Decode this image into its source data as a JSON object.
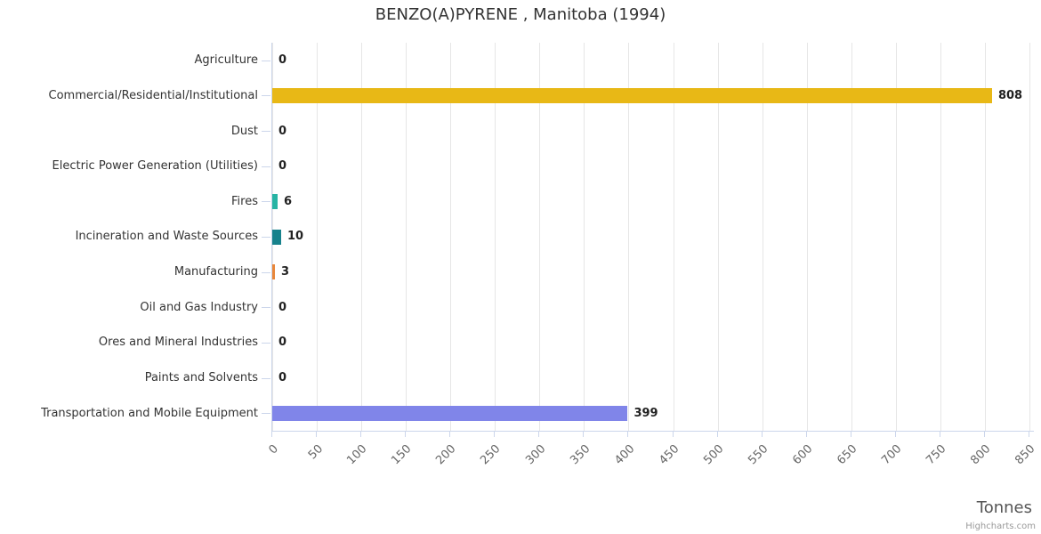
{
  "chart_data": {
    "type": "bar",
    "orientation": "horizontal",
    "title": "BENZO(A)PYRENE , Manitoba (1994)",
    "xlabel": "Tonnes",
    "ylabel": "",
    "grid": true,
    "legend": "none",
    "categories": [
      "Agriculture",
      "Commercial/Residential/Institutional",
      "Dust",
      "Electric Power Generation (Utilities)",
      "Fires",
      "Incineration and Waste Sources",
      "Manufacturing",
      "Oil and Gas Industry",
      "Ores and Mineral Industries",
      "Paints and Solvents",
      "Transportation and Mobile Equipment"
    ],
    "values": [
      0,
      808,
      0,
      0,
      6,
      10,
      3,
      0,
      0,
      0,
      399
    ],
    "colors": [
      "#999999",
      "#e8b816",
      "#999999",
      "#999999",
      "#27b4a4",
      "#17828c",
      "#e8873b",
      "#999999",
      "#999999",
      "#999999",
      "#8085e9"
    ],
    "xticks": [
      0,
      50,
      100,
      150,
      200,
      250,
      300,
      350,
      400,
      450,
      500,
      550,
      600,
      650,
      700,
      750,
      800,
      850
    ],
    "xlim": [
      0,
      855
    ],
    "grid_color": "#e6e6e6",
    "axis_line_color": "#ccd6eb"
  },
  "credit": "Highcharts.com"
}
